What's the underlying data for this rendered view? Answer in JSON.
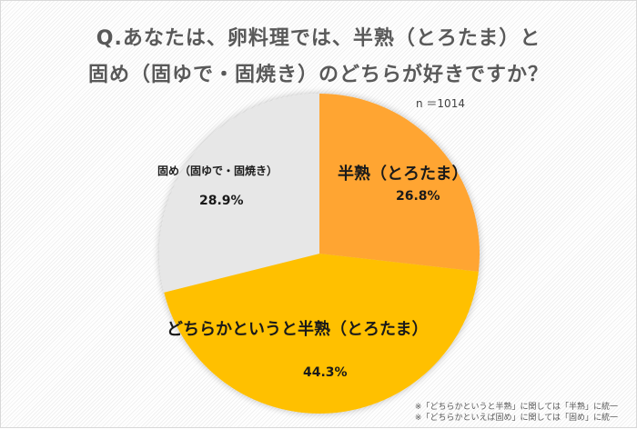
{
  "title": {
    "line1": "Q.あなたは、卵料理では、半熟（とろたま）と",
    "line2": "固め（固ゆで・固焼き）のどちらが好きですか？"
  },
  "sample_size": "n ＝1014",
  "slices": [
    {
      "label": "半熟（とろたま）",
      "value_label": "26.8%",
      "color": "#FFA533"
    },
    {
      "label": "どちらかというと半熟（とろたま）",
      "value_label": "44.3%",
      "color": "#FFC000"
    },
    {
      "label": "固め（固ゆで・固焼き）",
      "value_label": "28.9%",
      "color": "#E7E7E7"
    }
  ],
  "notes": [
    "※「どちらかというと半熟」に関しては「半熟」に統一",
    "※「どちらかといえば固め」に関しては「固め」に統一"
  ],
  "chart_data": {
    "type": "pie",
    "title": "Q.あなたは、卵料理では、半熟（とろたま）と固め（固ゆで・固焼き）のどちらが好きですか？",
    "subtitle": "n ＝1014",
    "categories": [
      "半熟（とろたま）",
      "どちらかというと半熟（とろたま）",
      "固め（固ゆで・固焼き）"
    ],
    "values": [
      26.8,
      44.3,
      28.9
    ],
    "unit": "%",
    "colors": [
      "#FFA533",
      "#FFC000",
      "#E7E7E7"
    ],
    "start_angle": "12 o'clock, clockwise",
    "annotations": [
      "※「どちらかというと半熟」に関しては「半熟」に統一",
      "※「どちらかといえば固め」に関しては「固め」に統一"
    ],
    "legend": "none (data labels on slices)"
  }
}
